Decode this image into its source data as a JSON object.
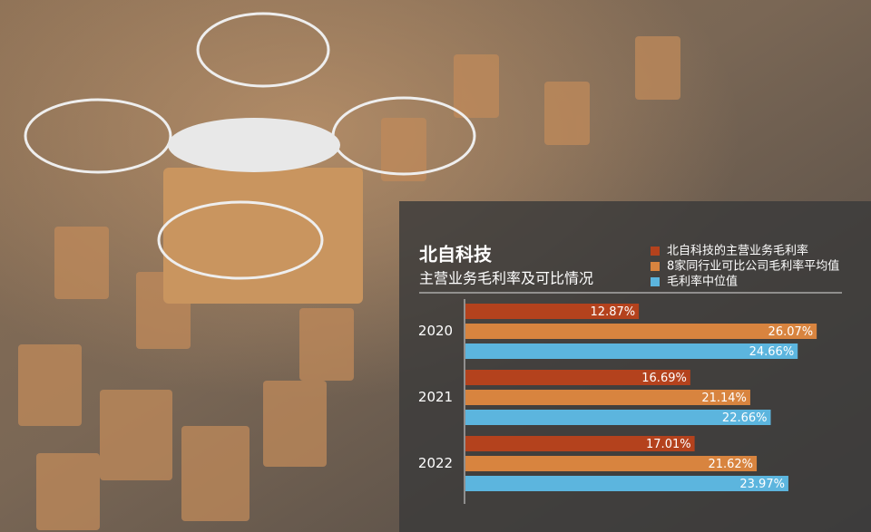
{
  "chart_data": {
    "type": "bar",
    "orientation": "horizontal",
    "title": "北自科技",
    "subtitle": "主营业务毛利率及可比情况",
    "categories": [
      "2020",
      "2021",
      "2022"
    ],
    "series": [
      {
        "name": "北自科技的主营业务毛利率",
        "color": "#b4421d",
        "values": [
          12.87,
          16.69,
          17.01
        ],
        "value_labels": [
          "12.87%",
          "16.69%",
          "17.01%"
        ]
      },
      {
        "name": "8家同行业可比公司毛利率平均值",
        "color": "#d8843f",
        "values": [
          26.07,
          21.14,
          21.62
        ],
        "value_labels": [
          "26.07%",
          "21.14%",
          "21.62%"
        ]
      },
      {
        "name": "毛利率中位值",
        "color": "#5cb5de",
        "values": [
          24.66,
          22.66,
          23.97
        ],
        "value_labels": [
          "24.66%",
          "22.66%",
          "23.97%"
        ]
      }
    ]
  }
}
